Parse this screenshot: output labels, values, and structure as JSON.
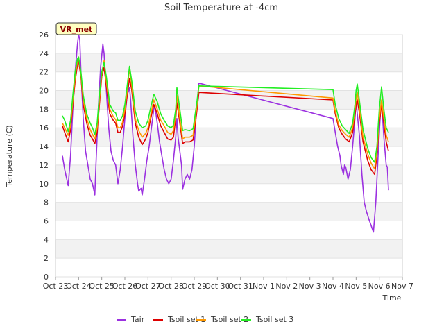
{
  "chart_data": {
    "type": "line",
    "title": "Soil Temperature at -4cm",
    "xlabel": "Time",
    "ylabel": "Temperature (C)",
    "badge": "VR_met",
    "ylim": [
      0,
      26
    ],
    "yticks": [
      0,
      2,
      4,
      6,
      8,
      10,
      12,
      14,
      16,
      18,
      20,
      22,
      24,
      26
    ],
    "xlim": [
      0,
      15
    ],
    "xticks": [
      "Oct 23",
      "Oct 24",
      "Oct 25",
      "Oct 26",
      "Oct 27",
      "Oct 28",
      "Oct 29",
      "Oct 30",
      "Oct 31",
      "Nov 1",
      "Nov 2",
      "Nov 3",
      "Nov 4",
      "Nov 5",
      "Nov 6",
      "Nov 7"
    ],
    "x_units": "days since Oct 23",
    "series": [
      {
        "name": "Tair",
        "color": "#9b30e0",
        "points": [
          [
            0.3,
            13.0
          ],
          [
            0.4,
            11.5
          ],
          [
            0.55,
            9.8
          ],
          [
            0.65,
            13.0
          ],
          [
            0.75,
            18.0
          ],
          [
            0.85,
            22.0
          ],
          [
            0.95,
            25.0
          ],
          [
            1.0,
            26.0
          ],
          [
            1.05,
            25.5
          ],
          [
            1.1,
            22.0
          ],
          [
            1.2,
            17.0
          ],
          [
            1.3,
            13.5
          ],
          [
            1.4,
            12.0
          ],
          [
            1.5,
            10.5
          ],
          [
            1.6,
            10.0
          ],
          [
            1.7,
            8.8
          ],
          [
            1.75,
            12.0
          ],
          [
            1.85,
            18.0
          ],
          [
            1.95,
            22.5
          ],
          [
            2.05,
            25.0
          ],
          [
            2.1,
            24.0
          ],
          [
            2.2,
            20.0
          ],
          [
            2.3,
            16.0
          ],
          [
            2.4,
            13.5
          ],
          [
            2.5,
            12.5
          ],
          [
            2.6,
            12.0
          ],
          [
            2.7,
            10.0
          ],
          [
            2.8,
            11.5
          ],
          [
            2.9,
            14.0
          ],
          [
            3.0,
            17.0
          ],
          [
            3.1,
            19.5
          ],
          [
            3.2,
            20.3
          ],
          [
            3.25,
            19.0
          ],
          [
            3.35,
            15.0
          ],
          [
            3.45,
            12.0
          ],
          [
            3.55,
            10.0
          ],
          [
            3.6,
            9.2
          ],
          [
            3.7,
            9.5
          ],
          [
            3.75,
            8.8
          ],
          [
            3.85,
            10.5
          ],
          [
            3.95,
            12.5
          ],
          [
            4.05,
            14.0
          ],
          [
            4.15,
            16.0
          ],
          [
            4.25,
            18.0
          ],
          [
            4.3,
            18.3
          ],
          [
            4.4,
            16.5
          ],
          [
            4.5,
            14.5
          ],
          [
            4.6,
            13.0
          ],
          [
            4.7,
            11.5
          ],
          [
            4.8,
            10.5
          ],
          [
            4.9,
            10.0
          ],
          [
            5.0,
            10.5
          ],
          [
            5.1,
            12.5
          ],
          [
            5.2,
            15.0
          ],
          [
            5.25,
            17.0
          ],
          [
            5.3,
            15.0
          ],
          [
            5.45,
            12.0
          ],
          [
            5.5,
            9.4
          ],
          [
            5.6,
            10.5
          ],
          [
            5.7,
            11.0
          ],
          [
            5.8,
            10.5
          ],
          [
            5.9,
            11.5
          ],
          [
            6.0,
            14.0
          ],
          [
            6.1,
            18.0
          ],
          [
            6.2,
            20.8
          ],
          [
            12.0,
            17.0
          ],
          [
            12.1,
            15.5
          ],
          [
            12.2,
            14.0
          ],
          [
            12.3,
            13.0
          ],
          [
            12.35,
            12.0
          ],
          [
            12.45,
            11.0
          ],
          [
            12.5,
            12.0
          ],
          [
            12.55,
            11.8
          ],
          [
            12.65,
            10.5
          ],
          [
            12.75,
            11.5
          ],
          [
            12.85,
            14.0
          ],
          [
            12.95,
            17.0
          ],
          [
            13.0,
            18.8
          ],
          [
            13.05,
            17.5
          ],
          [
            13.15,
            15.0
          ],
          [
            13.25,
            11.0
          ],
          [
            13.35,
            8.0
          ],
          [
            13.45,
            7.0
          ],
          [
            13.55,
            6.2
          ],
          [
            13.65,
            5.5
          ],
          [
            13.75,
            4.8
          ],
          [
            13.85,
            8.0
          ],
          [
            13.95,
            13.0
          ],
          [
            14.05,
            17.5
          ],
          [
            14.1,
            18.8
          ],
          [
            14.2,
            15.0
          ],
          [
            14.3,
            12.0
          ],
          [
            14.35,
            11.8
          ],
          [
            14.4,
            9.3
          ]
        ]
      },
      {
        "name": "Tsoil set 1",
        "color": "#dd0000",
        "points": [
          [
            0.3,
            16.2
          ],
          [
            0.4,
            15.5
          ],
          [
            0.55,
            14.5
          ],
          [
            0.65,
            15.8
          ],
          [
            0.75,
            18.5
          ],
          [
            0.85,
            21.0
          ],
          [
            0.95,
            22.8
          ],
          [
            1.0,
            23.2
          ],
          [
            1.1,
            21.5
          ],
          [
            1.2,
            18.5
          ],
          [
            1.35,
            16.5
          ],
          [
            1.5,
            15.2
          ],
          [
            1.6,
            14.8
          ],
          [
            1.7,
            14.3
          ],
          [
            1.8,
            15.5
          ],
          [
            1.9,
            18.5
          ],
          [
            2.0,
            21.5
          ],
          [
            2.1,
            22.5
          ],
          [
            2.2,
            20.5
          ],
          [
            2.35,
            17.5
          ],
          [
            2.5,
            16.8
          ],
          [
            2.6,
            16.5
          ],
          [
            2.7,
            15.5
          ],
          [
            2.8,
            15.5
          ],
          [
            2.9,
            16.2
          ],
          [
            3.0,
            17.5
          ],
          [
            3.1,
            19.5
          ],
          [
            3.2,
            21.3
          ],
          [
            3.3,
            20.0
          ],
          [
            3.45,
            16.5
          ],
          [
            3.6,
            15.0
          ],
          [
            3.75,
            14.2
          ],
          [
            3.9,
            14.8
          ],
          [
            4.0,
            15.5
          ],
          [
            4.1,
            16.8
          ],
          [
            4.25,
            18.5
          ],
          [
            4.4,
            17.5
          ],
          [
            4.55,
            16.2
          ],
          [
            4.7,
            15.5
          ],
          [
            4.85,
            14.8
          ],
          [
            5.0,
            14.7
          ],
          [
            5.1,
            15.0
          ],
          [
            5.2,
            17.0
          ],
          [
            5.25,
            18.7
          ],
          [
            5.35,
            17.0
          ],
          [
            5.5,
            14.3
          ],
          [
            5.6,
            14.5
          ],
          [
            5.8,
            14.5
          ],
          [
            5.95,
            14.7
          ],
          [
            6.1,
            17.5
          ],
          [
            6.2,
            19.8
          ],
          [
            12.0,
            19.0
          ],
          [
            12.1,
            17.5
          ],
          [
            12.25,
            16.0
          ],
          [
            12.4,
            15.3
          ],
          [
            12.55,
            14.8
          ],
          [
            12.7,
            14.5
          ],
          [
            12.85,
            15.5
          ],
          [
            12.95,
            17.5
          ],
          [
            13.0,
            18.5
          ],
          [
            13.05,
            19.0
          ],
          [
            13.15,
            17.5
          ],
          [
            13.3,
            14.5
          ],
          [
            13.5,
            12.5
          ],
          [
            13.65,
            11.5
          ],
          [
            13.8,
            11.0
          ],
          [
            13.9,
            13.0
          ],
          [
            14.0,
            16.5
          ],
          [
            14.1,
            18.5
          ],
          [
            14.2,
            16.5
          ],
          [
            14.3,
            14.5
          ],
          [
            14.4,
            13.5
          ]
        ]
      },
      {
        "name": "Tsoil set 2",
        "color": "#ff9900",
        "points": [
          [
            0.3,
            16.5
          ],
          [
            0.4,
            16.0
          ],
          [
            0.55,
            15.2
          ],
          [
            0.65,
            16.2
          ],
          [
            0.75,
            19.0
          ],
          [
            0.85,
            21.5
          ],
          [
            0.95,
            23.2
          ],
          [
            1.0,
            23.6
          ],
          [
            1.1,
            21.8
          ],
          [
            1.2,
            19.0
          ],
          [
            1.35,
            17.0
          ],
          [
            1.5,
            15.8
          ],
          [
            1.6,
            15.3
          ],
          [
            1.7,
            14.8
          ],
          [
            1.8,
            16.0
          ],
          [
            1.9,
            19.0
          ],
          [
            2.0,
            21.8
          ],
          [
            2.1,
            23.2
          ],
          [
            2.2,
            21.0
          ],
          [
            2.35,
            18.0
          ],
          [
            2.5,
            17.2
          ],
          [
            2.6,
            16.9
          ],
          [
            2.7,
            16.0
          ],
          [
            2.8,
            16.0
          ],
          [
            2.9,
            16.6
          ],
          [
            3.0,
            18.0
          ],
          [
            3.1,
            20.0
          ],
          [
            3.2,
            22.4
          ],
          [
            3.3,
            20.5
          ],
          [
            3.45,
            17.0
          ],
          [
            3.6,
            15.7
          ],
          [
            3.75,
            15.0
          ],
          [
            3.9,
            15.4
          ],
          [
            4.0,
            16.0
          ],
          [
            4.1,
            17.2
          ],
          [
            4.25,
            19.0
          ],
          [
            4.4,
            18.0
          ],
          [
            4.55,
            16.8
          ],
          [
            4.7,
            16.2
          ],
          [
            4.85,
            15.5
          ],
          [
            5.0,
            15.3
          ],
          [
            5.1,
            15.7
          ],
          [
            5.2,
            17.5
          ],
          [
            5.25,
            19.5
          ],
          [
            5.35,
            17.5
          ],
          [
            5.5,
            14.8
          ],
          [
            5.6,
            15.0
          ],
          [
            5.8,
            15.0
          ],
          [
            5.95,
            15.2
          ],
          [
            6.1,
            18.0
          ],
          [
            6.2,
            20.5
          ],
          [
            12.0,
            19.2
          ],
          [
            12.1,
            17.8
          ],
          [
            12.25,
            16.3
          ],
          [
            12.4,
            15.7
          ],
          [
            12.55,
            15.3
          ],
          [
            12.7,
            15.0
          ],
          [
            12.85,
            16.0
          ],
          [
            12.95,
            18.0
          ],
          [
            13.0,
            19.2
          ],
          [
            13.05,
            19.8
          ],
          [
            13.15,
            18.0
          ],
          [
            13.3,
            15.0
          ],
          [
            13.5,
            13.2
          ],
          [
            13.65,
            12.2
          ],
          [
            13.8,
            11.6
          ],
          [
            13.9,
            13.5
          ],
          [
            14.0,
            17.0
          ],
          [
            14.1,
            19.0
          ],
          [
            14.2,
            17.0
          ],
          [
            14.3,
            15.2
          ],
          [
            14.4,
            14.5
          ]
        ]
      },
      {
        "name": "Tsoil set 3",
        "color": "#22ee22",
        "points": [
          [
            0.3,
            17.3
          ],
          [
            0.4,
            16.8
          ],
          [
            0.55,
            15.6
          ],
          [
            0.65,
            16.8
          ],
          [
            0.75,
            19.5
          ],
          [
            0.85,
            22.0
          ],
          [
            0.95,
            23.4
          ],
          [
            1.0,
            23.6
          ],
          [
            1.1,
            22.0
          ],
          [
            1.2,
            19.5
          ],
          [
            1.35,
            17.5
          ],
          [
            1.5,
            16.5
          ],
          [
            1.6,
            16.0
          ],
          [
            1.7,
            15.3
          ],
          [
            1.8,
            16.5
          ],
          [
            1.9,
            19.5
          ],
          [
            2.0,
            22.0
          ],
          [
            2.1,
            23.0
          ],
          [
            2.2,
            21.5
          ],
          [
            2.35,
            18.5
          ],
          [
            2.5,
            17.8
          ],
          [
            2.6,
            17.6
          ],
          [
            2.7,
            16.8
          ],
          [
            2.8,
            16.8
          ],
          [
            2.9,
            17.3
          ],
          [
            3.0,
            18.5
          ],
          [
            3.1,
            20.5
          ],
          [
            3.2,
            22.6
          ],
          [
            3.3,
            21.0
          ],
          [
            3.45,
            17.8
          ],
          [
            3.6,
            16.5
          ],
          [
            3.75,
            16.0
          ],
          [
            3.9,
            16.2
          ],
          [
            4.0,
            16.8
          ],
          [
            4.1,
            18.0
          ],
          [
            4.25,
            19.6
          ],
          [
            4.4,
            18.8
          ],
          [
            4.55,
            17.5
          ],
          [
            4.7,
            16.8
          ],
          [
            4.85,
            16.2
          ],
          [
            5.0,
            16.0
          ],
          [
            5.1,
            16.3
          ],
          [
            5.2,
            18.0
          ],
          [
            5.25,
            20.3
          ],
          [
            5.35,
            18.5
          ],
          [
            5.5,
            15.7
          ],
          [
            5.6,
            15.8
          ],
          [
            5.8,
            15.7
          ],
          [
            5.95,
            15.9
          ],
          [
            6.1,
            18.5
          ],
          [
            6.2,
            20.5
          ],
          [
            12.0,
            20.1
          ],
          [
            12.1,
            18.5
          ],
          [
            12.25,
            17.0
          ],
          [
            12.4,
            16.2
          ],
          [
            12.55,
            15.8
          ],
          [
            12.7,
            15.4
          ],
          [
            12.85,
            16.5
          ],
          [
            12.95,
            18.5
          ],
          [
            13.0,
            20.0
          ],
          [
            13.05,
            20.7
          ],
          [
            13.15,
            18.8
          ],
          [
            13.3,
            15.8
          ],
          [
            13.5,
            13.8
          ],
          [
            13.65,
            12.8
          ],
          [
            13.8,
            12.3
          ],
          [
            13.9,
            14.0
          ],
          [
            14.0,
            18.0
          ],
          [
            14.1,
            20.4
          ],
          [
            14.2,
            18.0
          ],
          [
            14.3,
            16.0
          ],
          [
            14.4,
            15.5
          ]
        ]
      }
    ]
  }
}
